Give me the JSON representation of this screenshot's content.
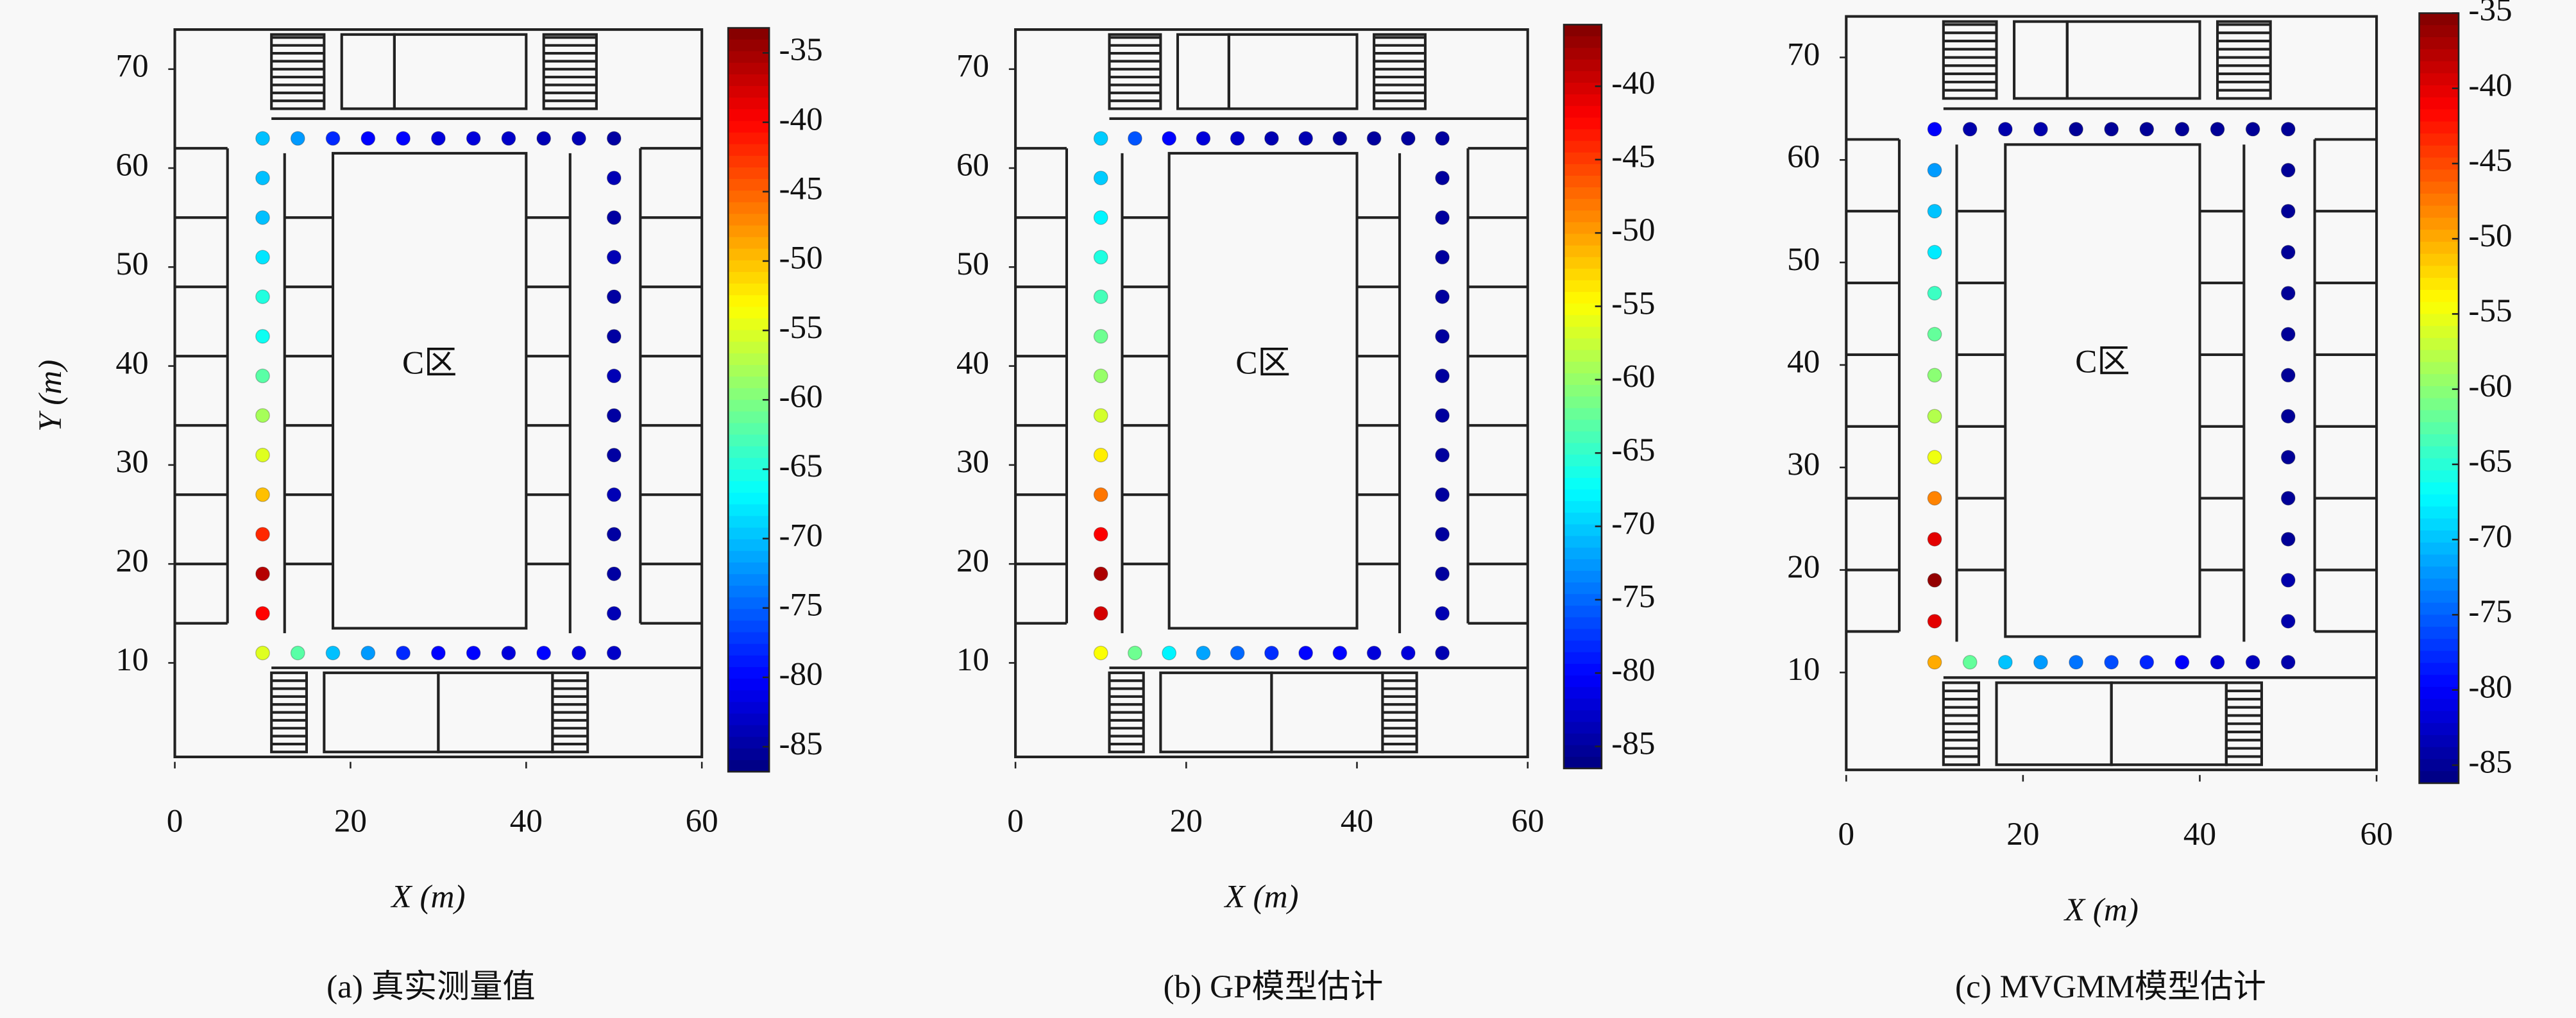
{
  "chart_data": [
    {
      "type": "scatter",
      "title": "(a) 真实测量值",
      "x_label": "X (m)",
      "y_label": "Y (m)",
      "annotation": "C区",
      "xlim": [
        0,
        60
      ],
      "ylim": [
        0,
        74
      ],
      "xticks": [
        0,
        20,
        40,
        60
      ],
      "yticks": [
        10,
        20,
        30,
        40,
        50,
        60,
        70
      ],
      "x": [
        10,
        14,
        18,
        22,
        26,
        30,
        34,
        38,
        42,
        46,
        50,
        50,
        50,
        50,
        50,
        50,
        50,
        50,
        50,
        50,
        50,
        50,
        50,
        50,
        46,
        42,
        38,
        34,
        30,
        26,
        22,
        18,
        14,
        10,
        10,
        10,
        10,
        10,
        10,
        10,
        10,
        10,
        10,
        10,
        10,
        10
      ],
      "y": [
        11,
        11,
        11,
        11,
        11,
        11,
        11,
        11,
        11,
        11,
        11,
        15,
        19,
        23,
        27,
        31,
        35,
        39,
        43,
        47,
        51,
        55,
        59,
        63,
        63,
        63,
        63,
        63,
        63,
        63,
        63,
        63,
        63,
        63,
        59,
        55,
        51,
        47,
        43,
        39,
        35,
        31,
        27,
        23,
        19,
        15
      ],
      "values": [
        -55,
        -62,
        -70,
        -72,
        -78,
        -80,
        -80,
        -82,
        -80,
        -82,
        -83,
        -84,
        -85,
        -85,
        -84,
        -85,
        -85,
        -84,
        -85,
        -85,
        -84,
        -85,
        -84,
        -85,
        -84,
        -84,
        -83,
        -82,
        -82,
        -80,
        -80,
        -78,
        -72,
        -70,
        -70,
        -70,
        -68,
        -65,
        -66,
        -62,
        -58,
        -55,
        -50,
        -42,
        -36,
        -40
      ],
      "colormap": "jet",
      "clim": [
        -86.8,
        -33.2
      ],
      "cticks": [
        -35,
        -40,
        -45,
        -50,
        -55,
        -60,
        -65,
        -70,
        -75,
        -80,
        -85
      ]
    },
    {
      "type": "scatter",
      "title": "(b) GP模型估计",
      "x_label": "X (m)",
      "annotation": "C区",
      "xlim": [
        0,
        60
      ],
      "ylim": [
        0,
        74
      ],
      "xticks": [
        0,
        20,
        40,
        60
      ],
      "yticks": [
        10,
        20,
        30,
        40,
        50,
        60,
        70
      ],
      "x": [
        10,
        14,
        18,
        22,
        26,
        30,
        34,
        38,
        42,
        46,
        50,
        50,
        50,
        50,
        50,
        50,
        50,
        50,
        50,
        50,
        50,
        50,
        50,
        50,
        46,
        42,
        38,
        34,
        30,
        26,
        22,
        18,
        14,
        10,
        10,
        10,
        10,
        10,
        10,
        10,
        10,
        10,
        10,
        10,
        10,
        10
      ],
      "y": [
        11,
        11,
        11,
        11,
        11,
        11,
        11,
        11,
        11,
        11,
        11,
        15,
        19,
        23,
        27,
        31,
        35,
        39,
        43,
        47,
        51,
        55,
        59,
        63,
        63,
        63,
        63,
        63,
        63,
        63,
        63,
        63,
        63,
        63,
        59,
        55,
        51,
        47,
        43,
        39,
        35,
        31,
        27,
        23,
        19,
        15
      ],
      "values": [
        -55,
        -62,
        -68,
        -72,
        -75,
        -78,
        -80,
        -80,
        -82,
        -82,
        -84,
        -84,
        -85,
        -85,
        -85,
        -85,
        -85,
        -85,
        -85,
        -85,
        -85,
        -85,
        -85,
        -85,
        -85,
        -85,
        -85,
        -84,
        -84,
        -83,
        -82,
        -80,
        -76,
        -70,
        -70,
        -68,
        -66,
        -64,
        -62,
        -60,
        -57,
        -54,
        -48,
        -42,
        -38,
        -40
      ],
      "colormap": "jet",
      "clim": [
        -86.5,
        -35.8
      ],
      "cticks": [
        -40,
        -45,
        -50,
        -55,
        -60,
        -65,
        -70,
        -75,
        -80,
        -85
      ]
    },
    {
      "type": "scatter",
      "title": "(c) MVGMM模型估计",
      "x_label": "X (m)",
      "annotation": "C区",
      "xlim": [
        0,
        60
      ],
      "ylim": [
        0,
        74
      ],
      "xticks": [
        0,
        20,
        40,
        60
      ],
      "yticks": [
        10,
        20,
        30,
        40,
        50,
        60,
        70
      ],
      "x": [
        10,
        14,
        18,
        22,
        26,
        30,
        34,
        38,
        42,
        46,
        50,
        50,
        50,
        50,
        50,
        50,
        50,
        50,
        50,
        50,
        50,
        50,
        50,
        50,
        46,
        42,
        38,
        34,
        30,
        26,
        22,
        18,
        14,
        10,
        10,
        10,
        10,
        10,
        10,
        10,
        10,
        10,
        10,
        10,
        10,
        10
      ],
      "y": [
        11,
        11,
        11,
        11,
        11,
        11,
        11,
        11,
        11,
        11,
        11,
        15,
        19,
        23,
        27,
        31,
        35,
        39,
        43,
        47,
        51,
        55,
        59,
        63,
        63,
        63,
        63,
        63,
        63,
        63,
        63,
        63,
        63,
        63,
        59,
        55,
        51,
        47,
        43,
        39,
        35,
        31,
        27,
        23,
        19,
        15
      ],
      "values": [
        -50,
        -62,
        -70,
        -72,
        -74,
        -76,
        -78,
        -80,
        -82,
        -83,
        -84,
        -84,
        -84,
        -85,
        -85,
        -85,
        -85,
        -85,
        -85,
        -85,
        -85,
        -85,
        -85,
        -85,
        -85,
        -85,
        -85,
        -85,
        -85,
        -85,
        -84,
        -84,
        -84,
        -80,
        -72,
        -70,
        -68,
        -64,
        -62,
        -60,
        -58,
        -55,
        -48,
        -40,
        -36,
        -40
      ],
      "colormap": "jet",
      "clim": [
        -86.2,
        -35
      ],
      "cticks": [
        -35,
        -40,
        -45,
        -50,
        -55,
        -60,
        -65,
        -70,
        -75,
        -80,
        -85
      ]
    }
  ]
}
